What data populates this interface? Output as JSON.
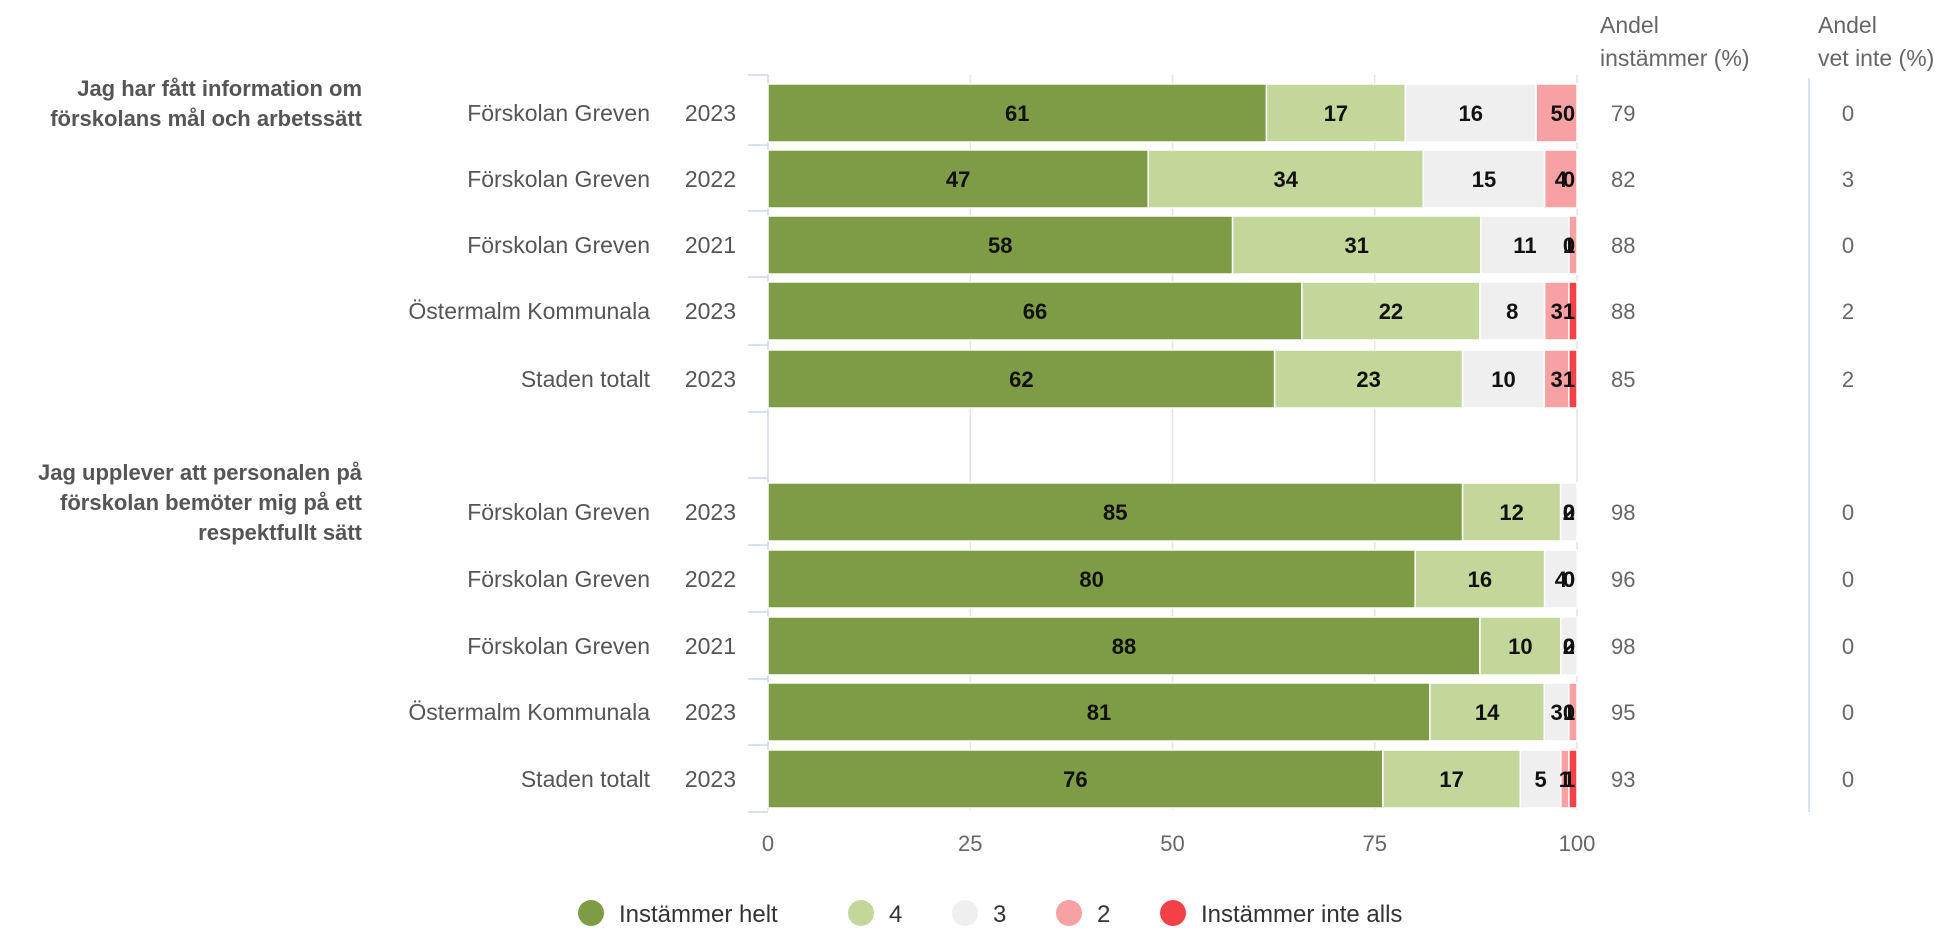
{
  "chart_data": {
    "type": "bar",
    "orientation": "horizontal",
    "stacked": true,
    "xlim": [
      0,
      100
    ],
    "x_ticks": [
      "0",
      "25",
      "50",
      "75",
      "100"
    ],
    "grid": true,
    "legend_position": "bottom",
    "series": [
      {
        "name": "Instämmer helt",
        "color": "#7e9c45"
      },
      {
        "name": "4",
        "color": "#c3d79a"
      },
      {
        "name": "3",
        "color": "#efefef"
      },
      {
        "name": "2",
        "color": "#f7a1a4"
      },
      {
        "name": "Instämmer inte alls",
        "color": "#f44148"
      }
    ],
    "column_headers": {
      "agree": [
        "Andel",
        "instämmer (%)"
      ],
      "dont_know": [
        "Andel",
        "vet inte (%)"
      ]
    },
    "groups": [
      {
        "question": [
          "Jag har fått information om",
          "förskolans mål och arbetssätt"
        ],
        "rows": [
          {
            "unit": "Förskolan Greven",
            "year": "2023",
            "values": [
              61,
              17,
              16,
              5,
              0
            ],
            "labels": [
              "61",
              "17",
              "16",
              "5",
              "0"
            ],
            "agree": "79",
            "dont_know": "0"
          },
          {
            "unit": "Förskolan Greven",
            "year": "2022",
            "values": [
              47,
              34,
              15,
              4,
              0
            ],
            "labels": [
              "47",
              "34",
              "15",
              "4",
              "0"
            ],
            "agree": "82",
            "dont_know": "3"
          },
          {
            "unit": "Förskolan Greven",
            "year": "2021",
            "values": [
              58,
              31,
              11,
              1,
              0
            ],
            "labels": [
              "58",
              "31",
              "11",
              "1",
              "0"
            ],
            "agree": "88",
            "dont_know": "0"
          },
          {
            "unit": "Östermalm Kommunala",
            "year": "2023",
            "values": [
              66,
              22,
              8,
              3,
              1
            ],
            "labels": [
              "66",
              "22",
              "8",
              "3",
              "1"
            ],
            "agree": "88",
            "dont_know": "2"
          },
          {
            "unit": "Staden totalt",
            "year": "2023",
            "values": [
              62,
              23,
              10,
              3,
              1
            ],
            "labels": [
              "62",
              "23",
              "10",
              "3",
              "1"
            ],
            "agree": "85",
            "dont_know": "2"
          }
        ]
      },
      {
        "question": [
          "Jag upplever att personalen på",
          "förskolan bemöter mig på ett",
          "respektfullt sätt"
        ],
        "rows": [
          {
            "unit": "Förskolan Greven",
            "year": "2023",
            "values": [
              85,
              12,
              2,
              0,
              0
            ],
            "labels": [
              "85",
              "12",
              "2",
              "0",
              "0"
            ],
            "agree": "98",
            "dont_know": "0"
          },
          {
            "unit": "Förskolan Greven",
            "year": "2022",
            "values": [
              80,
              16,
              4,
              0,
              0
            ],
            "labels": [
              "80",
              "16",
              "4",
              "0",
              "0"
            ],
            "agree": "96",
            "dont_know": "0"
          },
          {
            "unit": "Förskolan Greven",
            "year": "2021",
            "values": [
              88,
              10,
              2,
              0,
              0
            ],
            "labels": [
              "88",
              "10",
              "2",
              "0",
              "0"
            ],
            "agree": "98",
            "dont_know": "0"
          },
          {
            "unit": "Östermalm Kommunala",
            "year": "2023",
            "values": [
              81,
              14,
              3,
              1,
              0
            ],
            "labels": [
              "81",
              "14",
              "3",
              "1",
              "0"
            ],
            "agree": "95",
            "dont_know": "0"
          },
          {
            "unit": "Staden totalt",
            "year": "2023",
            "values": [
              76,
              17,
              5,
              1,
              1
            ],
            "labels": [
              "76",
              "17",
              "5",
              "1",
              "1"
            ],
            "agree": "93",
            "dont_know": "0"
          }
        ]
      }
    ]
  }
}
